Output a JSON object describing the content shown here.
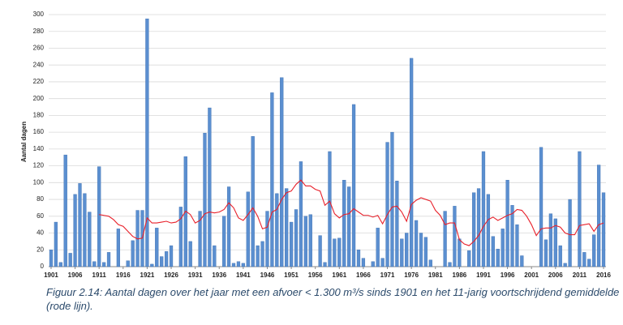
{
  "chart_data": {
    "type": "bar",
    "y_label": "Aantal dagen",
    "caption": "Figuur 2.14: Aantal dagen over het jaar met een afvoer < 1.300 m³/s sinds 1901 en het 11-jarig voortschrijdend gemiddelde (rode lijn).",
    "x": [
      1901,
      1902,
      1903,
      1904,
      1905,
      1906,
      1907,
      1908,
      1909,
      1910,
      1911,
      1912,
      1913,
      1914,
      1915,
      1916,
      1917,
      1918,
      1919,
      1920,
      1921,
      1922,
      1923,
      1924,
      1925,
      1926,
      1927,
      1928,
      1929,
      1930,
      1931,
      1932,
      1933,
      1934,
      1935,
      1936,
      1937,
      1938,
      1939,
      1940,
      1941,
      1942,
      1943,
      1944,
      1945,
      1946,
      1947,
      1948,
      1949,
      1950,
      1951,
      1952,
      1953,
      1954,
      1955,
      1956,
      1957,
      1958,
      1959,
      1960,
      1961,
      1962,
      1963,
      1964,
      1965,
      1966,
      1967,
      1968,
      1969,
      1970,
      1971,
      1972,
      1973,
      1974,
      1975,
      1976,
      1977,
      1978,
      1979,
      1980,
      1981,
      1982,
      1983,
      1984,
      1985,
      1986,
      1987,
      1988,
      1989,
      1990,
      1991,
      1992,
      1993,
      1994,
      1995,
      1996,
      1997,
      1998,
      1999,
      2000,
      2001,
      2002,
      2003,
      2004,
      2005,
      2006,
      2007,
      2008,
      2009,
      2010,
      2011,
      2012,
      2013,
      2014,
      2015,
      2016
    ],
    "series": [
      {
        "type": "bar",
        "color": "#5b8fd0",
        "values": [
          20,
          53,
          5,
          133,
          16,
          86,
          99,
          87,
          65,
          6,
          119,
          5,
          17,
          0,
          45,
          0,
          7,
          31,
          67,
          67,
          295,
          3,
          46,
          12,
          18,
          25,
          0,
          71,
          131,
          30,
          0,
          66,
          159,
          189,
          25,
          0,
          60,
          95,
          4,
          6,
          4,
          89,
          155,
          25,
          30,
          66,
          207,
          87,
          225,
          93,
          53,
          68,
          125,
          60,
          62,
          0,
          37,
          5,
          137,
          33,
          34,
          103,
          95,
          193,
          20,
          10,
          0,
          6,
          46,
          10,
          148,
          160,
          102,
          33,
          40,
          248,
          55,
          40,
          35,
          8,
          0,
          0,
          66,
          5,
          72,
          33,
          0,
          19,
          88,
          93,
          137,
          86,
          36,
          21,
          45,
          103,
          73,
          50,
          13,
          0,
          0,
          0,
          142,
          32,
          63,
          57,
          25,
          4,
          80,
          0,
          137,
          17,
          9,
          38,
          121,
          88
        ]
      },
      {
        "type": "line",
        "color": "#e8202a",
        "values": [
          null,
          null,
          null,
          null,
          null,
          null,
          null,
          null,
          null,
          null,
          62,
          61,
          60,
          56,
          50,
          48,
          42,
          36,
          33,
          34,
          58,
          52,
          52,
          53,
          54,
          52,
          53,
          57,
          66,
          62,
          52,
          55,
          63,
          65,
          64,
          65,
          68,
          76,
          70,
          58,
          55,
          62,
          70,
          60,
          45,
          47,
          65,
          68,
          80,
          88,
          90,
          98,
          103,
          96,
          96,
          92,
          90,
          73,
          78,
          63,
          58,
          62,
          63,
          69,
          65,
          61,
          61,
          59,
          61,
          51,
          62,
          71,
          72,
          65,
          54,
          74,
          79,
          82,
          80,
          78,
          67,
          61,
          50,
          52,
          52,
          32,
          27,
          25,
          30,
          37,
          48,
          56,
          59,
          55,
          58,
          61,
          63,
          68,
          67,
          60,
          50,
          37,
          45,
          46,
          46,
          49,
          47,
          40,
          38,
          38,
          49,
          50,
          51,
          42,
          50,
          52
        ]
      }
    ],
    "xlim": [
      1900.5,
      2016.5
    ],
    "xticks": [
      1901,
      1906,
      1911,
      1916,
      1921,
      1926,
      1931,
      1936,
      1941,
      1946,
      1951,
      1956,
      1961,
      1966,
      1971,
      1976,
      1981,
      1986,
      1991,
      1996,
      2001,
      2006,
      2011,
      2016
    ],
    "ylim": [
      0,
      300
    ],
    "yticks": [
      0,
      20,
      40,
      60,
      80,
      100,
      120,
      140,
      160,
      180,
      200,
      220,
      240,
      260,
      280,
      300
    ],
    "grid": true
  }
}
